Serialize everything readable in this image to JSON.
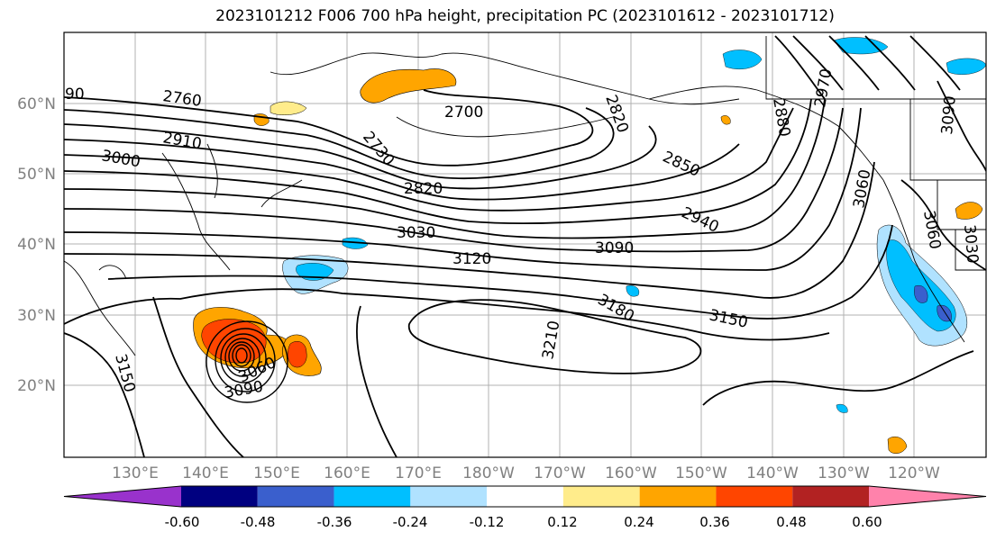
{
  "title": "2023101212 F006 700 hPa height, precipitation PC (2023101612 - 2023101712)",
  "map": {
    "lon_labels": [
      "130°E",
      "140°E",
      "150°E",
      "160°E",
      "170°E",
      "180°W",
      "170°W",
      "160°W",
      "150°W",
      "140°W",
      "130°W",
      "120°W"
    ],
    "lat_labels": [
      "60°N",
      "50°N",
      "40°N",
      "30°N",
      "20°N"
    ]
  },
  "contour_labels": [
    "90",
    "2760",
    "2910",
    "3000",
    "2700",
    "2730",
    "2820",
    "2820",
    "2880",
    "2850",
    "2940",
    "3030",
    "3090",
    "3120",
    "3180",
    "3150",
    "3210",
    "3060",
    "3090",
    "3150",
    "3060",
    "3060",
    "3030",
    "3090",
    "2970"
  ],
  "colorbar": {
    "tick_labels": [
      "-0.60",
      "-0.48",
      "-0.36",
      "-0.24",
      "-0.12",
      "0.12",
      "0.24",
      "0.36",
      "0.48",
      "0.60"
    ],
    "colors": [
      "#9932cc",
      "#000080",
      "#3a5fcd",
      "#00bfff",
      "#b0e2ff",
      "#ffffff",
      "#ffec8b",
      "#ffa500",
      "#ff4500",
      "#b22222",
      "#ff82ab"
    ]
  }
}
